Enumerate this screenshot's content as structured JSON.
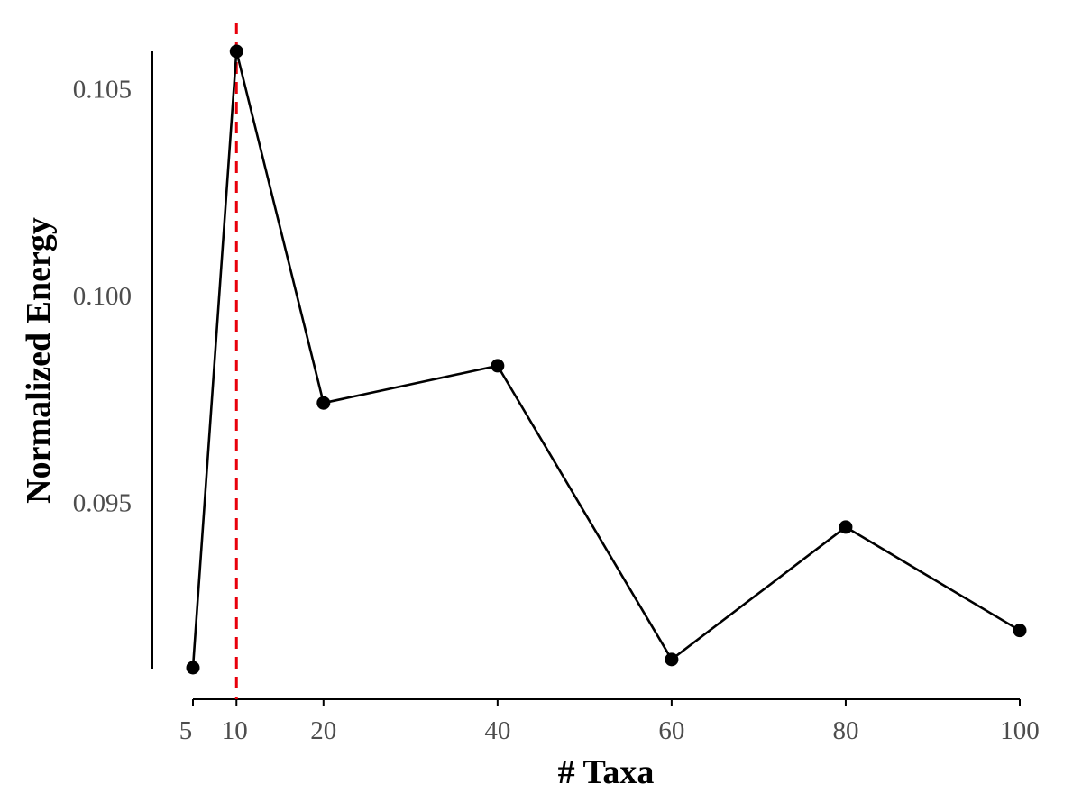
{
  "chart_data": {
    "type": "line",
    "title": "",
    "xlabel": "# Taxa",
    "ylabel": "Normalized Energy",
    "x": [
      5,
      10,
      20,
      40,
      60,
      80,
      100
    ],
    "series": [
      {
        "values": [
          0.091,
          0.1059,
          0.0974,
          0.0983,
          0.0912,
          0.0944,
          0.0919
        ],
        "color": "#000000",
        "marker": "circle"
      }
    ],
    "reference_line": {
      "axis": "x",
      "value": 10,
      "style": "dashed",
      "color": "#e8000b"
    },
    "x_ticks": [
      5,
      10,
      20,
      40,
      60,
      80,
      100
    ],
    "x_tick_labels": [
      "5",
      "10",
      "20",
      "40",
      "60",
      "80",
      "100"
    ],
    "y_ticks": [
      0.095,
      0.1,
      0.105
    ],
    "y_tick_labels": [
      "0.095",
      "0.100",
      "0.105"
    ],
    "xlim": [
      5,
      100
    ],
    "ylim": [
      0.091,
      0.1059
    ],
    "grid": false,
    "legend": "none"
  }
}
